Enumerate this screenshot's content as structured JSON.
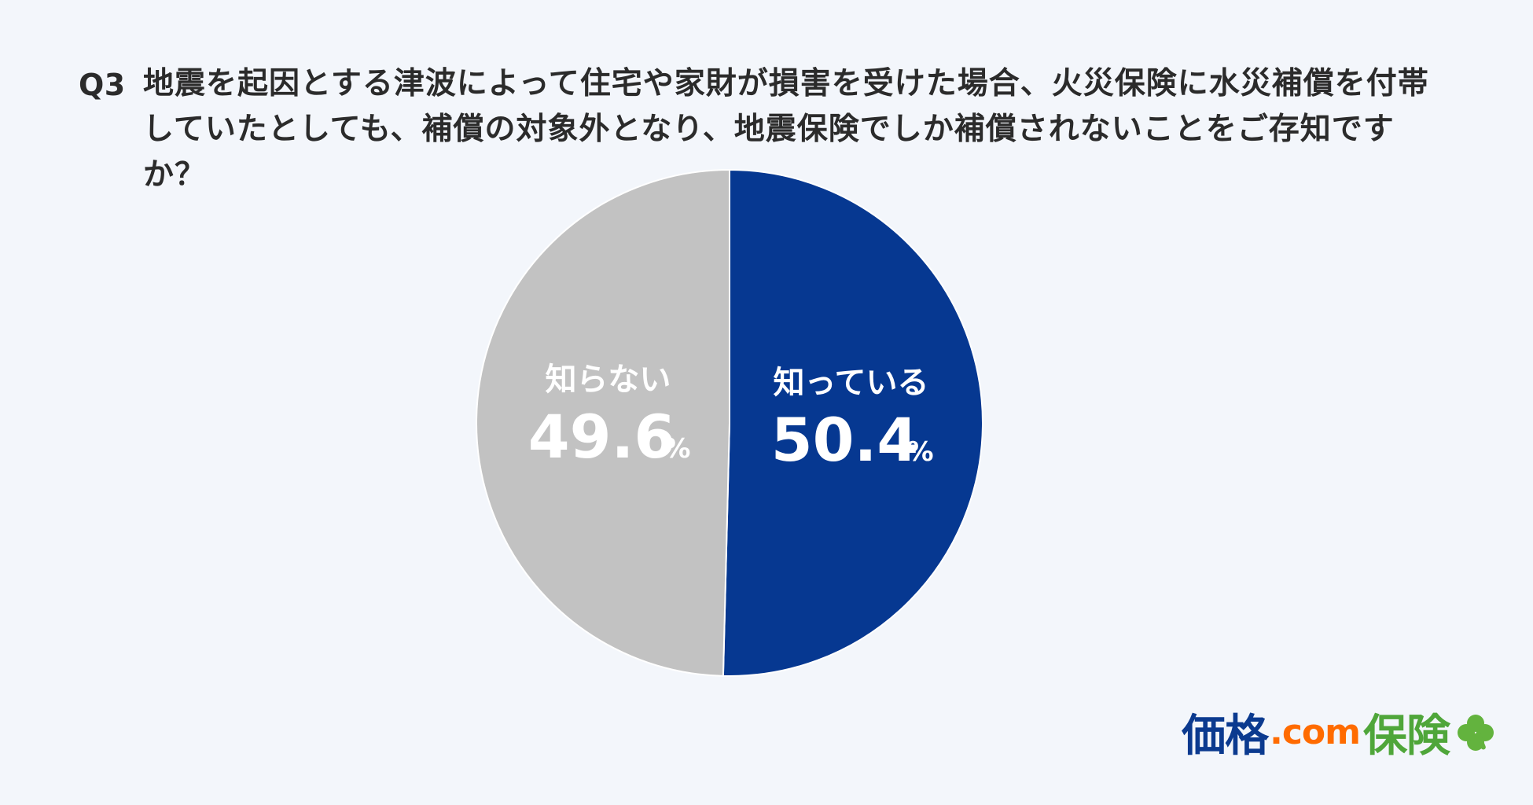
{
  "question": {
    "label": "Q3",
    "text": "地震を起因とする津波によって住宅や家財が損害を受けた場合、火災保険に水災補償を付帯していたとしても、補償の対象外となり、地震保険でしか補償されないことをご存知ですか？"
  },
  "chart_data": {
    "type": "pie",
    "categories": [
      "知っている",
      "知らない"
    ],
    "values": [
      50.4,
      49.6
    ],
    "colors": [
      "#063891",
      "#c2c2c2"
    ],
    "unit": "%",
    "title": "",
    "labels": [
      {
        "name": "知っている",
        "value_text": "50.4",
        "unit": "%"
      },
      {
        "name": "知らない",
        "value_text": "49.6",
        "unit": "%"
      }
    ]
  },
  "brand": {
    "part1": "価格",
    "part2": ".com",
    "part3": "保険",
    "icon": "clover-icon"
  }
}
